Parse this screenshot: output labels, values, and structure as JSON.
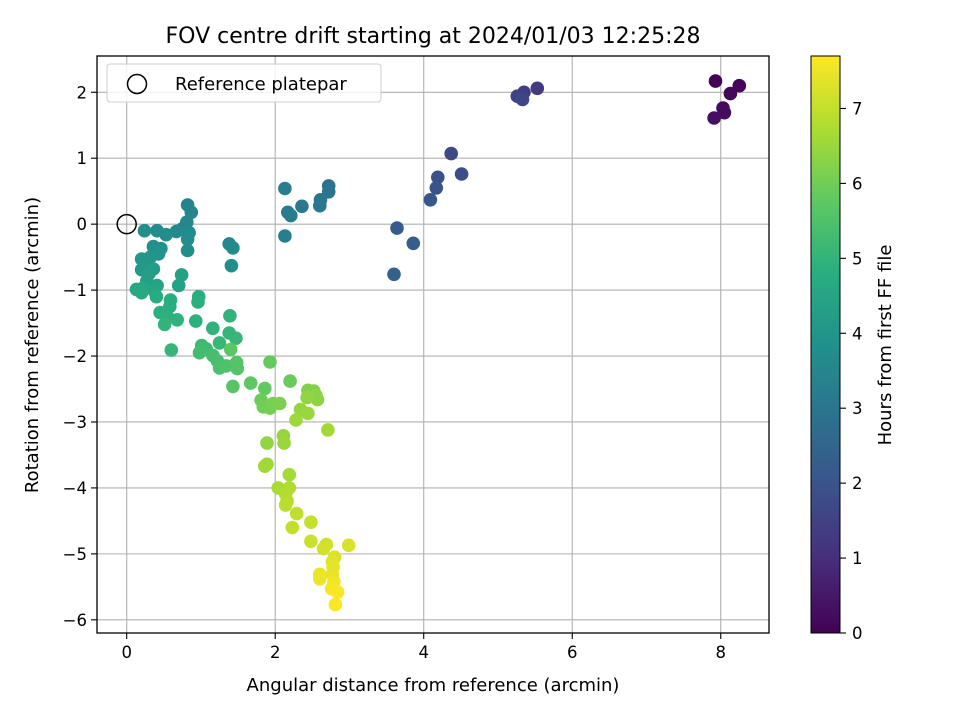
{
  "chart_data": {
    "type": "scatter",
    "title": "FOV centre drift starting at 2024/01/03 12:25:28",
    "xlabel": "Angular distance from reference (arcmin)",
    "ylabel": "Rotation from reference (arcmin)",
    "xlim": [
      -0.4,
      8.65
    ],
    "ylim": [
      -6.2,
      2.55
    ],
    "xticks": [
      0,
      2,
      4,
      6,
      8
    ],
    "yticks": [
      -6,
      -5,
      -4,
      -3,
      -2,
      -1,
      0,
      1,
      2
    ],
    "xtick_labels": [
      "0",
      "2",
      "4",
      "6",
      "8"
    ],
    "ytick_labels": [
      "−6",
      "−5",
      "−4",
      "−3",
      "−2",
      "−1",
      "0",
      "1",
      "2"
    ],
    "grid": true,
    "legend": {
      "location": "upper-left",
      "entries": [
        {
          "label": "Reference platepar",
          "marker": "open-circle"
        }
      ]
    },
    "reference_point": {
      "x": 0,
      "y": 0
    },
    "colormap": "viridis",
    "colorbar": {
      "label": "Hours from first FF file",
      "range": [
        0,
        7.7
      ],
      "ticks": [
        0,
        1,
        2,
        3,
        4,
        5,
        6,
        7
      ],
      "tick_labels": [
        "0",
        "1",
        "2",
        "3",
        "4",
        "5",
        "6",
        "7"
      ]
    },
    "series": [
      {
        "values": [
          [
            7.93,
            2.17,
            0.05
          ],
          [
            8.25,
            2.1,
            0.1
          ],
          [
            8.13,
            1.98,
            0.15
          ],
          [
            8.03,
            1.76,
            0.2
          ],
          [
            8.05,
            1.69,
            0.25
          ],
          [
            7.91,
            1.61,
            0.3
          ],
          [
            5.53,
            2.06,
            1.3
          ],
          [
            5.35,
            2.0,
            1.4
          ],
          [
            5.26,
            1.94,
            1.5
          ],
          [
            5.33,
            1.89,
            1.6
          ],
          [
            4.37,
            1.07,
            1.7
          ],
          [
            4.51,
            0.76,
            1.8
          ],
          [
            4.19,
            0.71,
            1.9
          ],
          [
            4.17,
            0.55,
            2.0
          ],
          [
            4.09,
            0.37,
            2.1
          ],
          [
            3.64,
            -0.06,
            2.2
          ],
          [
            3.86,
            -0.29,
            2.3
          ],
          [
            3.6,
            -0.76,
            2.4
          ],
          [
            2.72,
            0.58,
            2.9
          ],
          [
            2.72,
            0.49,
            2.95
          ],
          [
            2.61,
            0.37,
            3.0
          ],
          [
            2.6,
            0.28,
            3.05
          ],
          [
            2.36,
            0.27,
            3.1
          ],
          [
            2.17,
            0.18,
            3.15
          ],
          [
            2.21,
            0.13,
            3.2
          ],
          [
            2.13,
            0.54,
            3.25
          ],
          [
            2.13,
            -0.18,
            3.3
          ],
          [
            0.82,
            0.29,
            3.4
          ],
          [
            0.87,
            0.18,
            3.45
          ],
          [
            0.81,
            0.03,
            3.5
          ],
          [
            0.75,
            -0.07,
            3.55
          ],
          [
            0.67,
            -0.11,
            3.6
          ],
          [
            0.84,
            -0.13,
            3.65
          ],
          [
            0.82,
            -0.23,
            3.7
          ],
          [
            0.82,
            -0.4,
            3.75
          ],
          [
            0.41,
            -0.1,
            3.7
          ],
          [
            0.53,
            -0.16,
            3.75
          ],
          [
            0.24,
            -0.1,
            3.8
          ],
          [
            0.36,
            -0.34,
            3.85
          ],
          [
            0.46,
            -0.37,
            3.9
          ],
          [
            0.43,
            -0.45,
            3.95
          ],
          [
            0.32,
            -0.5,
            4.0
          ],
          [
            0.2,
            -0.53,
            4.05
          ],
          [
            1.38,
            -0.3,
            3.6
          ],
          [
            1.43,
            -0.36,
            3.65
          ],
          [
            1.41,
            -0.63,
            3.7
          ],
          [
            0.29,
            -0.62,
            4.1
          ],
          [
            0.2,
            -0.69,
            4.15
          ],
          [
            0.36,
            -0.68,
            4.2
          ],
          [
            0.3,
            -0.75,
            4.25
          ],
          [
            0.27,
            -0.86,
            4.3
          ],
          [
            0.74,
            -0.77,
            4.35
          ],
          [
            0.7,
            -0.93,
            4.4
          ],
          [
            0.41,
            -0.93,
            4.45
          ],
          [
            0.37,
            -1.01,
            4.5
          ],
          [
            0.22,
            -0.97,
            4.55
          ],
          [
            0.13,
            -0.99,
            4.6
          ],
          [
            0.2,
            -1.04,
            4.65
          ],
          [
            0.4,
            -1.1,
            4.7
          ],
          [
            0.59,
            -1.15,
            4.75
          ],
          [
            0.58,
            -1.25,
            4.8
          ],
          [
            0.45,
            -1.34,
            4.85
          ],
          [
            0.55,
            -1.41,
            4.9
          ],
          [
            0.68,
            -1.45,
            4.95
          ],
          [
            0.51,
            -1.52,
            5.0
          ],
          [
            0.6,
            -1.91,
            5.05
          ],
          [
            0.97,
            -1.1,
            4.8
          ],
          [
            0.96,
            -1.18,
            4.85
          ],
          [
            0.93,
            -1.47,
            4.9
          ],
          [
            1.16,
            -1.58,
            4.95
          ],
          [
            1.39,
            -1.39,
            5.0
          ],
          [
            1.38,
            -1.65,
            5.05
          ],
          [
            1.47,
            -1.73,
            5.1
          ],
          [
            1.25,
            -1.8,
            5.15
          ],
          [
            1.01,
            -1.84,
            5.2
          ],
          [
            1.07,
            -1.89,
            5.25
          ],
          [
            0.98,
            -1.95,
            5.3
          ],
          [
            1.16,
            -1.99,
            5.35
          ],
          [
            1.22,
            -2.07,
            5.4
          ],
          [
            1.25,
            -2.18,
            5.45
          ],
          [
            1.34,
            -2.15,
            5.5
          ],
          [
            1.48,
            -2.1,
            5.55
          ],
          [
            1.49,
            -2.19,
            5.6
          ],
          [
            1.43,
            -2.46,
            5.65
          ],
          [
            1.4,
            -1.9,
            5.7
          ],
          [
            1.67,
            -2.41,
            5.75
          ],
          [
            1.86,
            -2.49,
            5.8
          ],
          [
            1.93,
            -2.09,
            5.85
          ],
          [
            2.2,
            -2.38,
            5.9
          ],
          [
            1.81,
            -2.67,
            5.95
          ],
          [
            1.84,
            -2.77,
            6.0
          ],
          [
            1.93,
            -2.79,
            6.05
          ],
          [
            1.97,
            -2.72,
            6.1
          ],
          [
            2.06,
            -2.72,
            6.15
          ],
          [
            2.44,
            -2.52,
            6.2
          ],
          [
            2.52,
            -2.53,
            6.25
          ],
          [
            2.55,
            -2.6,
            6.3
          ],
          [
            2.57,
            -2.66,
            6.35
          ],
          [
            2.43,
            -2.63,
            6.4
          ],
          [
            2.34,
            -2.81,
            6.45
          ],
          [
            2.44,
            -2.87,
            6.5
          ],
          [
            2.28,
            -2.97,
            6.55
          ],
          [
            2.71,
            -3.12,
            6.6
          ],
          [
            1.89,
            -3.32,
            6.4
          ],
          [
            2.11,
            -3.21,
            6.45
          ],
          [
            2.12,
            -3.32,
            6.5
          ],
          [
            1.89,
            -3.64,
            6.55
          ],
          [
            1.86,
            -3.67,
            6.6
          ],
          [
            2.19,
            -3.8,
            6.65
          ],
          [
            2.04,
            -4.0,
            6.7
          ],
          [
            2.19,
            -4.0,
            6.75
          ],
          [
            2.14,
            -4.09,
            6.8
          ],
          [
            2.16,
            -4.2,
            6.85
          ],
          [
            2.14,
            -4.26,
            6.9
          ],
          [
            2.29,
            -4.39,
            6.95
          ],
          [
            2.23,
            -4.6,
            7.0
          ],
          [
            2.48,
            -4.52,
            7.05
          ],
          [
            2.48,
            -4.81,
            7.1
          ],
          [
            2.69,
            -4.86,
            7.15
          ],
          [
            2.65,
            -4.92,
            7.2
          ],
          [
            2.99,
            -4.87,
            7.25
          ],
          [
            2.8,
            -5.05,
            7.3
          ],
          [
            2.77,
            -5.12,
            7.35
          ],
          [
            2.78,
            -5.2,
            7.4
          ],
          [
            2.77,
            -5.31,
            7.45
          ],
          [
            2.6,
            -5.31,
            7.5
          ],
          [
            2.6,
            -5.38,
            7.52
          ],
          [
            2.79,
            -5.42,
            7.55
          ],
          [
            2.76,
            -5.53,
            7.6
          ],
          [
            2.84,
            -5.58,
            7.65
          ],
          [
            2.81,
            -5.77,
            7.7
          ]
        ]
      }
    ]
  }
}
